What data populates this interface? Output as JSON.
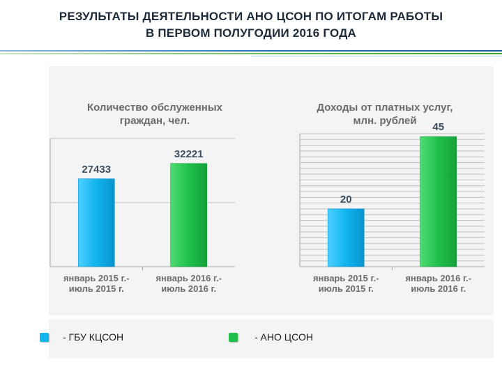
{
  "page": {
    "title_line1": "РЕЗУЛЬТАТЫ ДЕЯТЕЛЬНОСТИ АНО ЦСОН ПО ИТОГАМ РАБОТЫ",
    "title_line2": "В ПЕРВОМ ПОЛУГОДИИ 2016 ГОДА"
  },
  "colors": {
    "blue": "#10b4ee",
    "green": "#1fbf4a",
    "grid": "#bfbfbf"
  },
  "chart_data": [
    {
      "type": "bar",
      "title_line1": "Количество обслуженных",
      "title_line2": "граждан, чел.",
      "categories": [
        [
          "январь 2015 г.-",
          "июль 2015 г."
        ],
        [
          "январь 2016 г.-",
          "июль 2016 г."
        ]
      ],
      "series": [
        {
          "values": [
            27433,
            32221
          ]
        }
      ],
      "labels": [
        "27433",
        "32221"
      ],
      "ylim": [
        0,
        40000
      ],
      "grid_step": 20000
    },
    {
      "type": "bar",
      "title_line1": "Доходы от платных услуг,",
      "title_line2": "млн. рублей",
      "categories": [
        [
          "январь 2015 г.-",
          "июль 2015 г."
        ],
        [
          "январь 2016 г.-",
          "июль 2016 г."
        ]
      ],
      "series": [
        {
          "values": [
            20,
            45
          ]
        }
      ],
      "labels": [
        "20",
        "45"
      ],
      "ylim": [
        0,
        46
      ],
      "grid_step": 2
    }
  ],
  "legend": [
    {
      "label": "- ГБУ КЦСОН",
      "color": "#10b4ee"
    },
    {
      "label": "- АНО ЦСОН",
      "color": "#1fbf4a"
    }
  ]
}
